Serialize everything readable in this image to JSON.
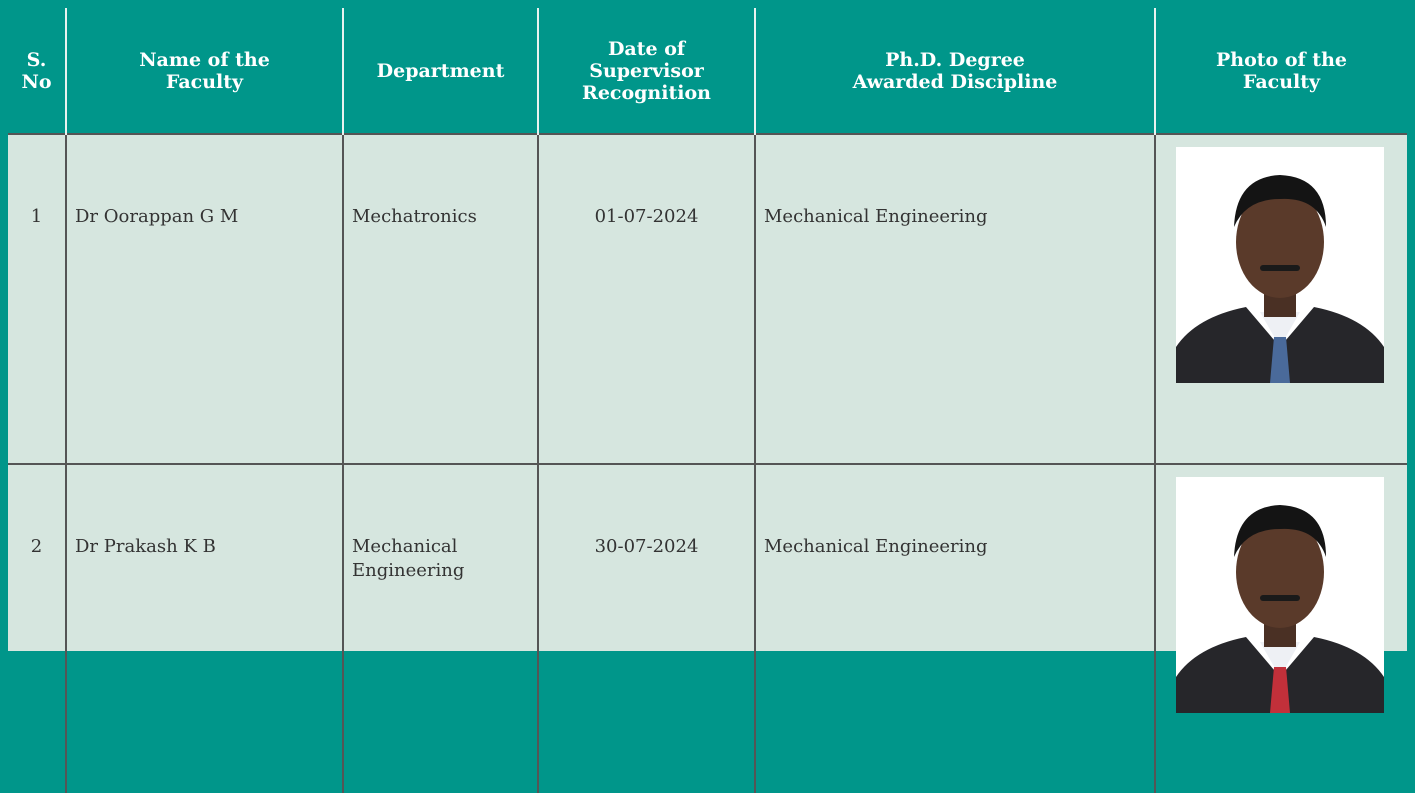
{
  "table": {
    "headers": [
      "S.\nNo",
      "Name of the\nFaculty",
      "Department",
      "Date of\nSupervisor\nRecognition",
      "Ph.D. Degree\nAwarded Discipline",
      "Photo of the\nFaculty"
    ],
    "rows": [
      [
        "1",
        "Dr Oorappan G M",
        "Mechatronics",
        "01-07-2024",
        "Mechanical Engineering"
      ],
      [
        "2",
        "Dr Prakash K B",
        "Mechanical Engineering",
        "30-07-2024",
        "Mechanical Engineering"
      ]
    ]
  }
}
